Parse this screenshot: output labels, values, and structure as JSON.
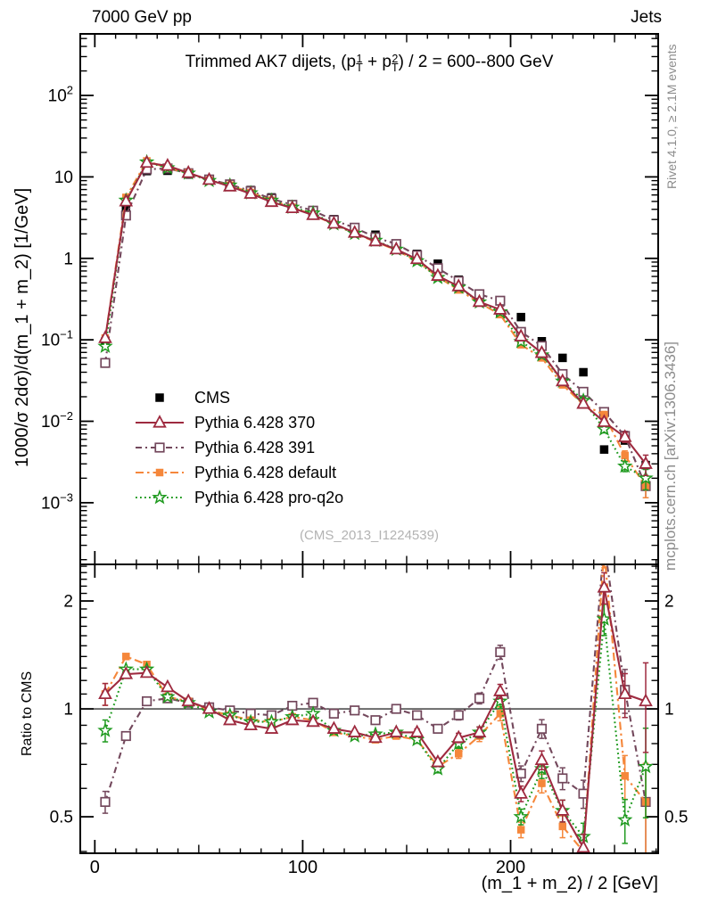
{
  "header": {
    "left": "7000 GeV pp",
    "right": "Jets"
  },
  "main_title": {
    "plain": "Trimmed AK7 dijets, (pT1 + pT2) / 2 = 600--800 GeV",
    "parts": [
      {
        "text": "Trimmed AK7 dijets, ("
      },
      {
        "base": "p",
        "sup": "1",
        "sub": "T"
      },
      {
        "text": " + "
      },
      {
        "base": "p",
        "sup": "2",
        "sub": "T"
      },
      {
        "text": ") / 2 = 600--800 GeV"
      }
    ]
  },
  "axes": {
    "y_main": "1000/σ  2dσ)/d(m_1 + m_2) [1/GeV]",
    "y_ratio": "Ratio to CMS",
    "x": "(m_1 + m_2) / 2 [GeV]"
  },
  "credits": {
    "top": "Rivet 4.1.0, ≥ 2.1M events",
    "bottom": "mcplots.cern.ch [arXiv:1306.3436]"
  },
  "watermark": "(CMS_2013_I1224539)",
  "legend": {
    "items": [
      {
        "label": "CMS",
        "series": "cms"
      },
      {
        "label": "Pythia 6.428 370",
        "series": "py370"
      },
      {
        "label": "Pythia 6.428 391",
        "series": "py391"
      },
      {
        "label": "Pythia 6.428 default",
        "series": "pydefault"
      },
      {
        "label": "Pythia 6.428 pro-q2o",
        "series": "proq2o"
      }
    ]
  },
  "chart_data": {
    "type": "line",
    "x_bin_centers": [
      5,
      15,
      25,
      35,
      45,
      55,
      65,
      75,
      85,
      95,
      105,
      115,
      125,
      135,
      145,
      155,
      165,
      175,
      185,
      195,
      205,
      215,
      225,
      235,
      245,
      255,
      265
    ],
    "bin_width": 10,
    "xlim": [
      -7,
      271
    ],
    "x_ticks": [
      0,
      100,
      200
    ],
    "main_panel": {
      "ylog": true,
      "ylim": [
        0.000175,
        570
      ],
      "y_ticks": [
        100,
        10,
        1,
        0.1,
        0.01,
        0.001
      ]
    },
    "ratio_panel": {
      "ylog": true,
      "ylim": [
        0.3955,
        2.53
      ],
      "y_ticks": [
        2,
        1,
        0.5
      ],
      "ref_line": 1
    },
    "rel_err": [
      0.07,
      0.02,
      0.015,
      0.012,
      0.01,
      0.01,
      0.01,
      0.01,
      0.01,
      0.012,
      0.012,
      0.014,
      0.016,
      0.018,
      0.02,
      0.022,
      0.025,
      0.03,
      0.035,
      0.045,
      0.05,
      0.06,
      0.07,
      0.09,
      0.1,
      0.14,
      0.28
    ],
    "series": [
      {
        "id": "cms",
        "name": "CMS",
        "color": "#000000",
        "marker": "square_filled",
        "marker_size": 9.5,
        "line": "none",
        "values": [
          0.095,
          4.0,
          11.8,
          11.9,
          10.7,
          9.2,
          8.2,
          6.9,
          5.6,
          4.45,
          3.7,
          3.03,
          2.4,
          1.95,
          1.5,
          1.135,
          0.86,
          0.547,
          0.339,
          0.21,
          0.19,
          0.096,
          0.06,
          0.04,
          0.0045,
          0.0058,
          0.0029
        ]
      },
      {
        "id": "py391",
        "name": "Pythia 6.428 391",
        "color": "#73485c",
        "marker": "square_open",
        "marker_size": 9.5,
        "line": "dashdot",
        "values": [
          0.052,
          3.36,
          12.4,
          12.7,
          11.1,
          9.3,
          8.1,
          6.7,
          5.38,
          4.54,
          3.85,
          2.94,
          2.38,
          1.81,
          1.5,
          1.09,
          0.757,
          0.525,
          0.363,
          0.302,
          0.125,
          0.084,
          0.038,
          0.023,
          0.013,
          0.0066,
          0.0016
        ],
        "ratio": [
          0.55,
          0.84,
          1.05,
          1.07,
          1.04,
          1.01,
          0.99,
          0.97,
          0.96,
          1.02,
          1.04,
          0.97,
          0.99,
          0.93,
          1.0,
          0.96,
          0.88,
          0.96,
          1.07,
          1.44,
          0.66,
          0.88,
          0.64,
          0.58,
          2.9,
          1.13,
          0.55
        ]
      },
      {
        "id": "pydefault",
        "name": "Pythia 6.428 default",
        "color": "#f5873b",
        "marker": "square_filled",
        "marker_size": 8.5,
        "line": "dashdot2",
        "values": [
          0.105,
          5.6,
          15.7,
          12.9,
          11.2,
          9.1,
          7.9,
          6.42,
          5.15,
          4.23,
          3.44,
          2.61,
          2.02,
          1.6,
          1.26,
          0.93,
          0.59,
          0.41,
          0.285,
          0.204,
          0.087,
          0.06,
          0.028,
          0.016,
          0.012,
          0.0038,
          0.0016
        ],
        "ratio": [
          1.1,
          1.4,
          1.33,
          1.08,
          1.05,
          0.99,
          0.96,
          0.93,
          0.92,
          0.95,
          0.93,
          0.86,
          0.84,
          0.82,
          0.84,
          0.82,
          0.69,
          0.75,
          0.84,
          0.97,
          0.46,
          0.62,
          0.47,
          0.4,
          2.75,
          0.65,
          0.55
        ]
      },
      {
        "id": "proq2o",
        "name": "Pythia 6.428 pro-q2o",
        "color": "#1f9a1f",
        "marker": "star_open",
        "marker_size": 7,
        "line": "dotted",
        "values": [
          0.083,
          5.16,
          15.2,
          12.9,
          11.1,
          9.0,
          7.9,
          6.35,
          5.15,
          4.23,
          3.59,
          2.64,
          2.02,
          1.66,
          1.29,
          0.93,
          0.58,
          0.44,
          0.29,
          0.22,
          0.095,
          0.065,
          0.031,
          0.018,
          0.008,
          0.0028,
          0.002
        ],
        "ratio": [
          0.87,
          1.29,
          1.29,
          1.08,
          1.04,
          0.98,
          0.96,
          0.92,
          0.92,
          0.95,
          0.97,
          0.87,
          0.84,
          0.85,
          0.86,
          0.82,
          0.68,
          0.8,
          0.86,
          1.05,
          0.5,
          0.68,
          0.52,
          0.44,
          1.78,
          0.49,
          0.69
        ]
      },
      {
        "id": "py370",
        "name": "Pythia 6.428 370",
        "color": "#9e2a3f",
        "marker": "triangle_open",
        "marker_size": 7,
        "line": "solid",
        "values": [
          0.105,
          5.0,
          14.9,
          13.7,
          11.2,
          9.2,
          7.63,
          6.21,
          4.93,
          4.14,
          3.4,
          2.67,
          2.06,
          1.62,
          1.29,
          0.98,
          0.61,
          0.454,
          0.292,
          0.235,
          0.11,
          0.069,
          0.031,
          0.0164,
          0.0098,
          0.0064,
          0.003
        ],
        "ratio": [
          1.1,
          1.25,
          1.26,
          1.15,
          1.05,
          1.0,
          0.93,
          0.9,
          0.88,
          0.93,
          0.92,
          0.88,
          0.86,
          0.83,
          0.86,
          0.86,
          0.71,
          0.83,
          0.86,
          1.12,
          0.58,
          0.72,
          0.52,
          0.41,
          2.18,
          1.1,
          1.05
        ]
      }
    ]
  }
}
